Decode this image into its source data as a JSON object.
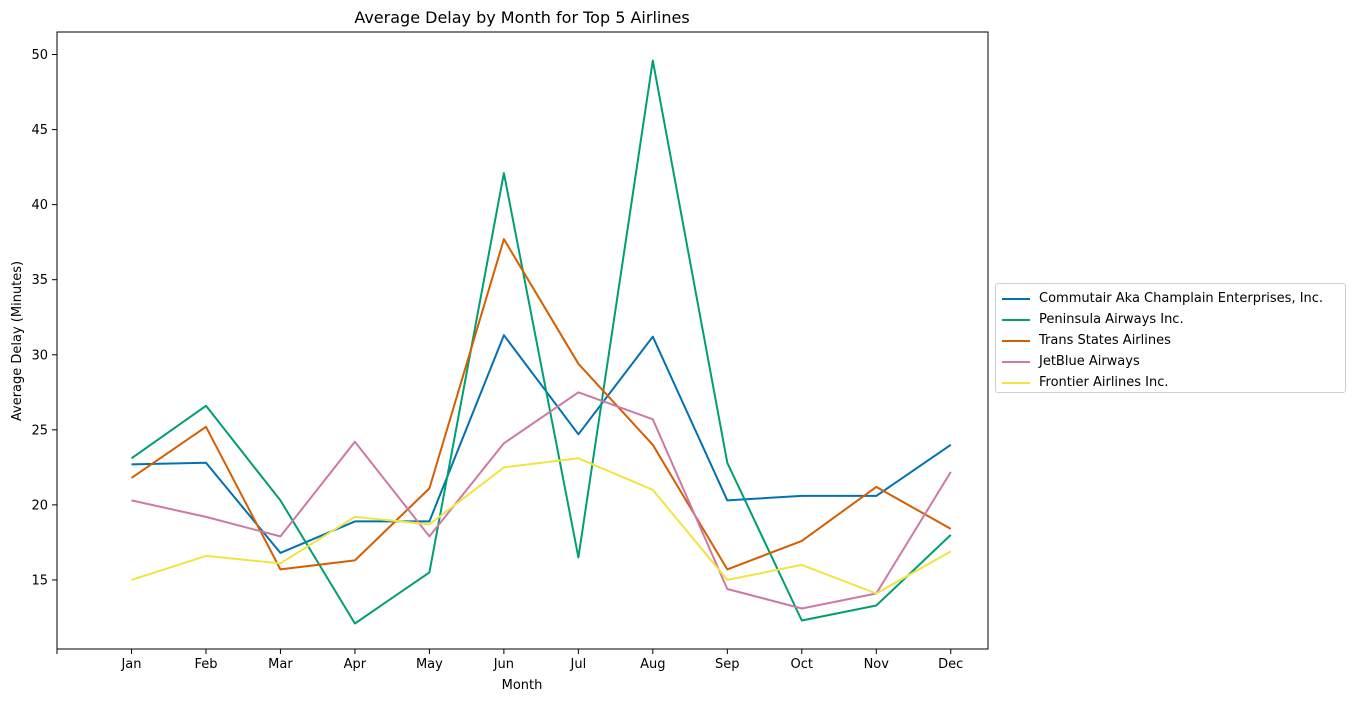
{
  "chart_data": {
    "type": "line",
    "title": "Average Delay by Month for Top 5 Airlines",
    "xlabel": "Month",
    "ylabel": "Average Delay (Minutes)",
    "categories": [
      "Jan",
      "Feb",
      "Mar",
      "Apr",
      "May",
      "Jun",
      "Jul",
      "Aug",
      "Sep",
      "Oct",
      "Nov",
      "Dec"
    ],
    "yticks": [
      15,
      20,
      25,
      30,
      35,
      40,
      45,
      50
    ],
    "ylim": [
      10.4,
      51.5
    ],
    "grid": false,
    "legend_position": "right",
    "series": [
      {
        "name": "Commutair Aka Champlain Enterprises, Inc.",
        "color": "#0072b2",
        "values": [
          22.7,
          22.8,
          16.8,
          18.9,
          18.9,
          31.3,
          24.7,
          31.2,
          20.3,
          20.6,
          20.6,
          24.0
        ]
      },
      {
        "name": "Peninsula Airways Inc.",
        "color": "#009e73",
        "values": [
          23.1,
          26.6,
          20.3,
          12.1,
          15.5,
          42.1,
          16.5,
          49.6,
          22.8,
          12.3,
          13.3,
          18.0
        ]
      },
      {
        "name": "Trans States Airlines",
        "color": "#d55e00",
        "values": [
          21.8,
          25.2,
          15.7,
          16.3,
          21.1,
          37.7,
          29.4,
          24.0,
          15.7,
          17.6,
          21.2,
          18.4
        ]
      },
      {
        "name": "JetBlue Airways",
        "color": "#cc79a7",
        "values": [
          20.3,
          19.2,
          17.9,
          24.2,
          17.9,
          24.1,
          27.5,
          25.7,
          14.4,
          13.1,
          14.1,
          22.2
        ]
      },
      {
        "name": "Frontier Airlines Inc.",
        "color": "#f0e442",
        "values": [
          15.0,
          16.6,
          16.1,
          19.2,
          18.7,
          22.5,
          23.1,
          21.0,
          15.0,
          16.0,
          14.1,
          16.9
        ]
      }
    ]
  }
}
